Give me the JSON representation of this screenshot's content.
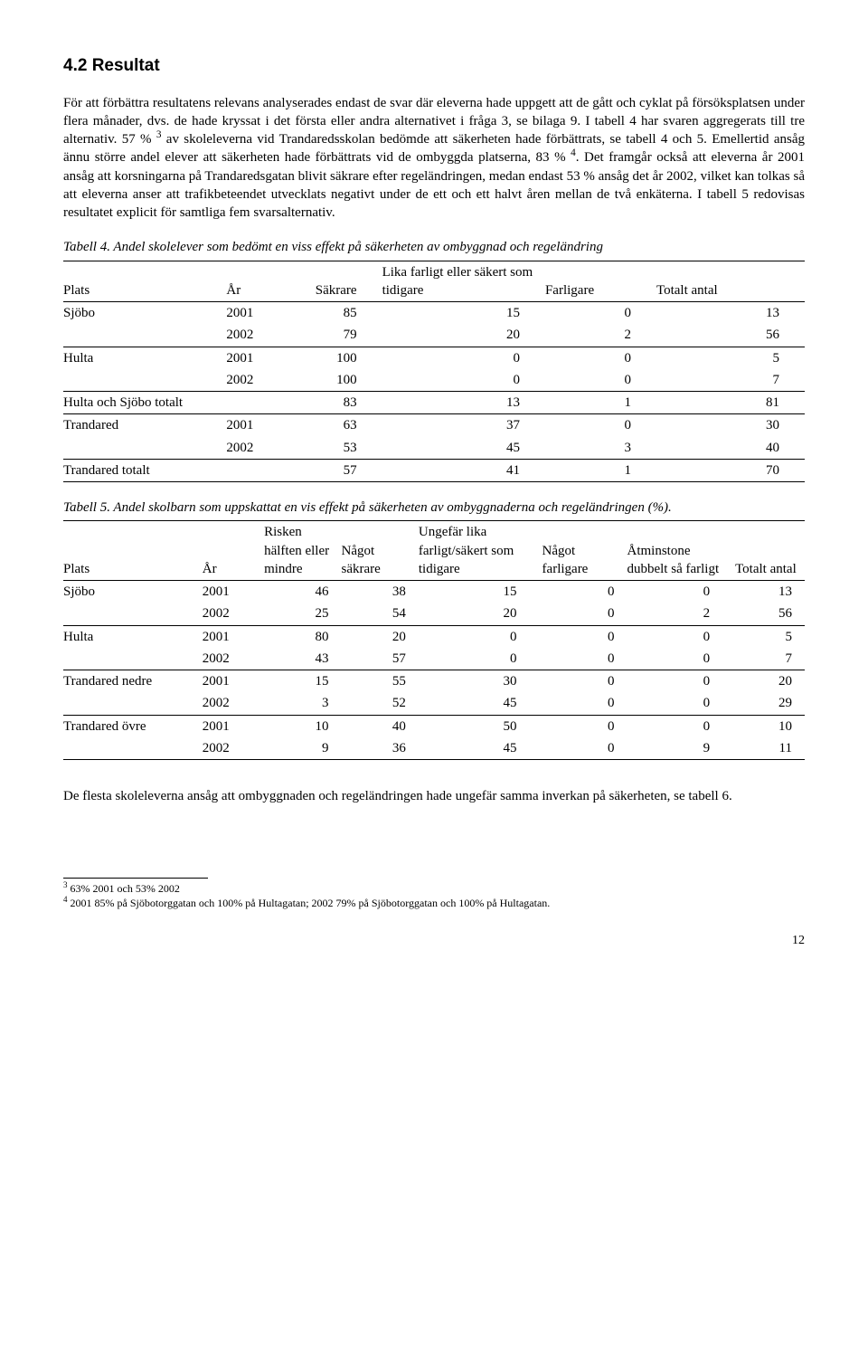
{
  "section": {
    "title": "4.2 Resultat",
    "para1": "För att förbättra resultatens relevans analyserades endast de svar där eleverna hade uppgett att de gått och cyklat på försöksplatsen under flera månader, dvs. de hade kryssat i det första eller andra alternativet i fråga 3, se bilaga 9. I tabell 4 har svaren aggregerats till tre alternativ. 57 % ",
    "para1_after_sup1": " av skoleleverna vid Trandaredsskolan bedömde att säkerheten hade förbättrats, se tabell 4 och 5. Emellertid ansåg ännu större andel elever att säkerheten hade förbättrats vid de ombyggda platserna, 83 % ",
    "para1_after_sup2": ". Det framgår också att eleverna år 2001 ansåg att korsningarna på Trandaredsgatan blivit säkrare efter regeländringen, medan endast 53 % ansåg det år 2002, vilket kan tolkas så att eleverna anser att trafikbeteendet utvecklats negativt under de ett och ett halvt åren mellan de två enkäterna. I tabell 5 redovisas resultatet explicit för samtliga fem svarsalternativ.",
    "fn3_mark": "3",
    "fn4_mark": "4"
  },
  "table4": {
    "caption": "Tabell 4. Andel skolelever som bedömt en viss effekt på säkerheten av ombyggnad och regeländring",
    "headers": {
      "plats": "Plats",
      "ar": "År",
      "sakrare": "Säkrare",
      "lika": "Lika farligt eller säkert som tidigare",
      "farligare": "Farligare",
      "totalt": "Totalt antal"
    },
    "rows": [
      {
        "plats": "Sjöbo",
        "ar": "2001",
        "c1": "85",
        "c2": "15",
        "c3": "0",
        "c4": "13"
      },
      {
        "plats": "",
        "ar": "2002",
        "c1": "79",
        "c2": "20",
        "c3": "2",
        "c4": "56"
      },
      {
        "plats": "Hulta",
        "ar": "2001",
        "c1": "100",
        "c2": "0",
        "c3": "0",
        "c4": "5"
      },
      {
        "plats": "",
        "ar": "2002",
        "c1": "100",
        "c2": "0",
        "c3": "0",
        "c4": "7"
      },
      {
        "plats": "Hulta och Sjöbo totalt",
        "ar": "",
        "c1": "83",
        "c2": "13",
        "c3": "1",
        "c4": "81"
      },
      {
        "plats": "Trandared",
        "ar": "2001",
        "c1": "63",
        "c2": "37",
        "c3": "0",
        "c4": "30"
      },
      {
        "plats": "",
        "ar": "2002",
        "c1": "53",
        "c2": "45",
        "c3": "3",
        "c4": "40"
      },
      {
        "plats": "Trandared totalt",
        "ar": "",
        "c1": "57",
        "c2": "41",
        "c3": "1",
        "c4": "70"
      }
    ],
    "col_widths": [
      "22%",
      "9%",
      "12%",
      "22%",
      "15%",
      "20%"
    ]
  },
  "table5": {
    "caption": "Tabell 5. Andel skolbarn som uppskattat en vis effekt på säkerheten av ombyggnaderna och regeländringen (%).",
    "headers": {
      "plats": "Plats",
      "ar": "År",
      "c1": "Risken hälften eller mindre",
      "c2": "Något säkrare",
      "c3": "Ungefär lika farligt/säkert som tidigare",
      "c4": "Något farligare",
      "c5": "Åtminstone dubbelt så farligt",
      "c6": "Totalt antal"
    },
    "rows": [
      {
        "plats": "Sjöbo",
        "ar": "2001",
        "c1": "46",
        "c2": "38",
        "c3": "15",
        "c4": "0",
        "c5": "0",
        "c6": "13"
      },
      {
        "plats": "",
        "ar": "2002",
        "c1": "25",
        "c2": "54",
        "c3": "20",
        "c4": "0",
        "c5": "2",
        "c6": "56"
      },
      {
        "plats": "Hulta",
        "ar": "2001",
        "c1": "80",
        "c2": "20",
        "c3": "0",
        "c4": "0",
        "c5": "0",
        "c6": "5"
      },
      {
        "plats": "",
        "ar": "2002",
        "c1": "43",
        "c2": "57",
        "c3": "0",
        "c4": "0",
        "c5": "0",
        "c6": "7"
      },
      {
        "plats": "Trandared nedre",
        "ar": "2001",
        "c1": "15",
        "c2": "55",
        "c3": "30",
        "c4": "0",
        "c5": "0",
        "c6": "20"
      },
      {
        "plats": "",
        "ar": "2002",
        "c1": "3",
        "c2": "52",
        "c3": "45",
        "c4": "0",
        "c5": "0",
        "c6": "29"
      },
      {
        "plats": "Trandared övre",
        "ar": "2001",
        "c1": "10",
        "c2": "40",
        "c3": "50",
        "c4": "0",
        "c5": "0",
        "c6": "10"
      },
      {
        "plats": "",
        "ar": "2002",
        "c1": "9",
        "c2": "36",
        "c3": "45",
        "c4": "0",
        "c5": "9",
        "c6": "11"
      }
    ],
    "col_widths": [
      "18%",
      "8%",
      "10%",
      "10%",
      "16%",
      "11%",
      "14%",
      "9%"
    ]
  },
  "closing_para": "De flesta skoleleverna ansåg att ombyggnaden och regeländringen hade ungefär samma inverkan på säkerheten, se tabell 6.",
  "footnotes": {
    "fn3_mark": "3",
    "fn3_text": " 63% 2001 och 53% 2002",
    "fn4_mark": "4",
    "fn4_text": " 2001 85% på Sjöbotorggatan och 100% på Hultagatan; 2002 79% på Sjöbotorggatan  och 100% på Hultagatan."
  },
  "page_number": "12"
}
